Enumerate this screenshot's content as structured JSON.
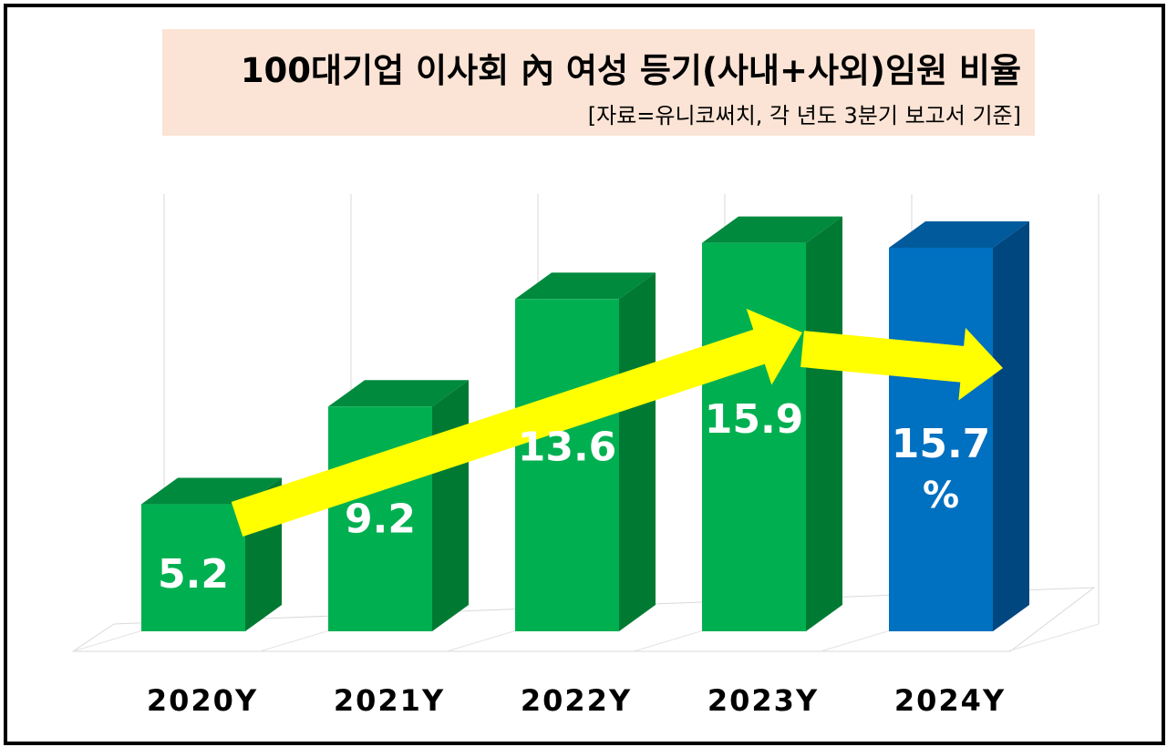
{
  "chart_data": {
    "type": "bar",
    "title": "100대기업 이사회 內 여성 등기(사내+사외)임원 비율",
    "subtitle": "[자료=유니코써치, 각 년도 3분기 보고서 기준]",
    "categories": [
      "2020Y",
      "2021Y",
      "2022Y",
      "2023Y",
      "2024Y"
    ],
    "values": [
      5.2,
      9.2,
      13.6,
      15.9,
      15.7
    ],
    "data_labels": [
      "5.2",
      "9.2",
      "13.6",
      "15.9",
      "15.7"
    ],
    "unit_label": "%",
    "ylim": [
      0,
      18
    ],
    "style": "3d-column",
    "grid": "vertical",
    "legend": "none",
    "annotations": [
      "yellow trend arrow rising 2020Y→2023Y",
      "yellow arrow slightly falling 2023Y→2024Y"
    ],
    "colors": {
      "bar_front": "#00b050",
      "bar_side": "#007a33",
      "bar_top": "#008a3e",
      "highlight_front": "#0070c0",
      "highlight_side": "#00467f",
      "highlight_top": "#005a9c",
      "arrow": "#ffff00",
      "title_bg": "#fbe4d5"
    }
  }
}
